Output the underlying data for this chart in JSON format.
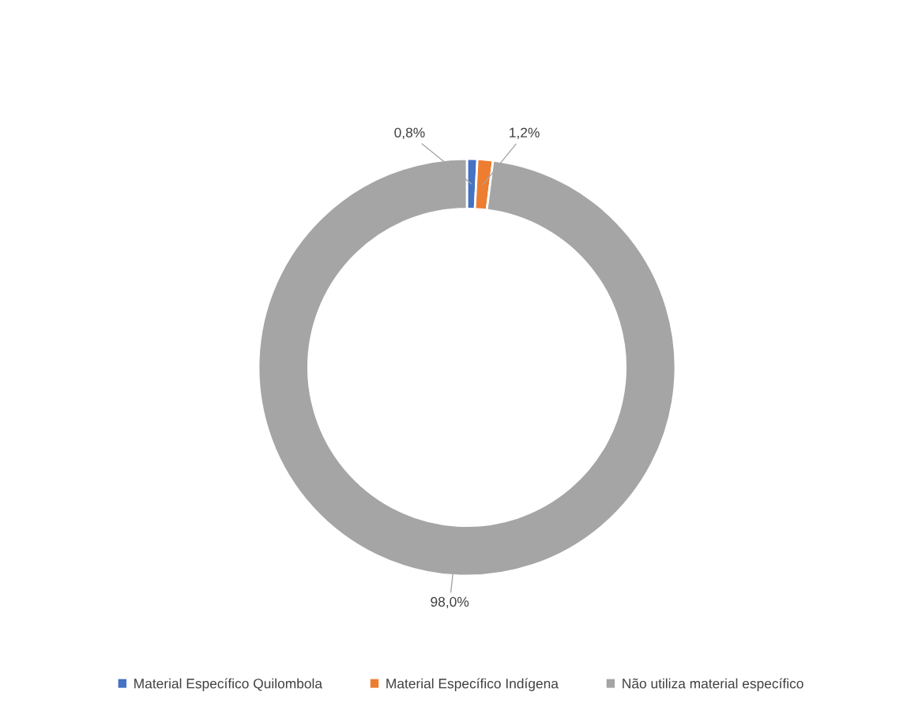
{
  "chart_data": {
    "type": "donut",
    "categories": [
      "Material Específico Quilombola",
      "Material Específico Indígena",
      "Não utiliza material específico"
    ],
    "values": [
      0.8,
      1.2,
      98.0
    ],
    "colors": [
      "#4472c4",
      "#ed7d31",
      "#a5a5a5"
    ],
    "value_labels": [
      "0,8%",
      "1,2%",
      "98,0%"
    ],
    "legend": "bottom"
  }
}
